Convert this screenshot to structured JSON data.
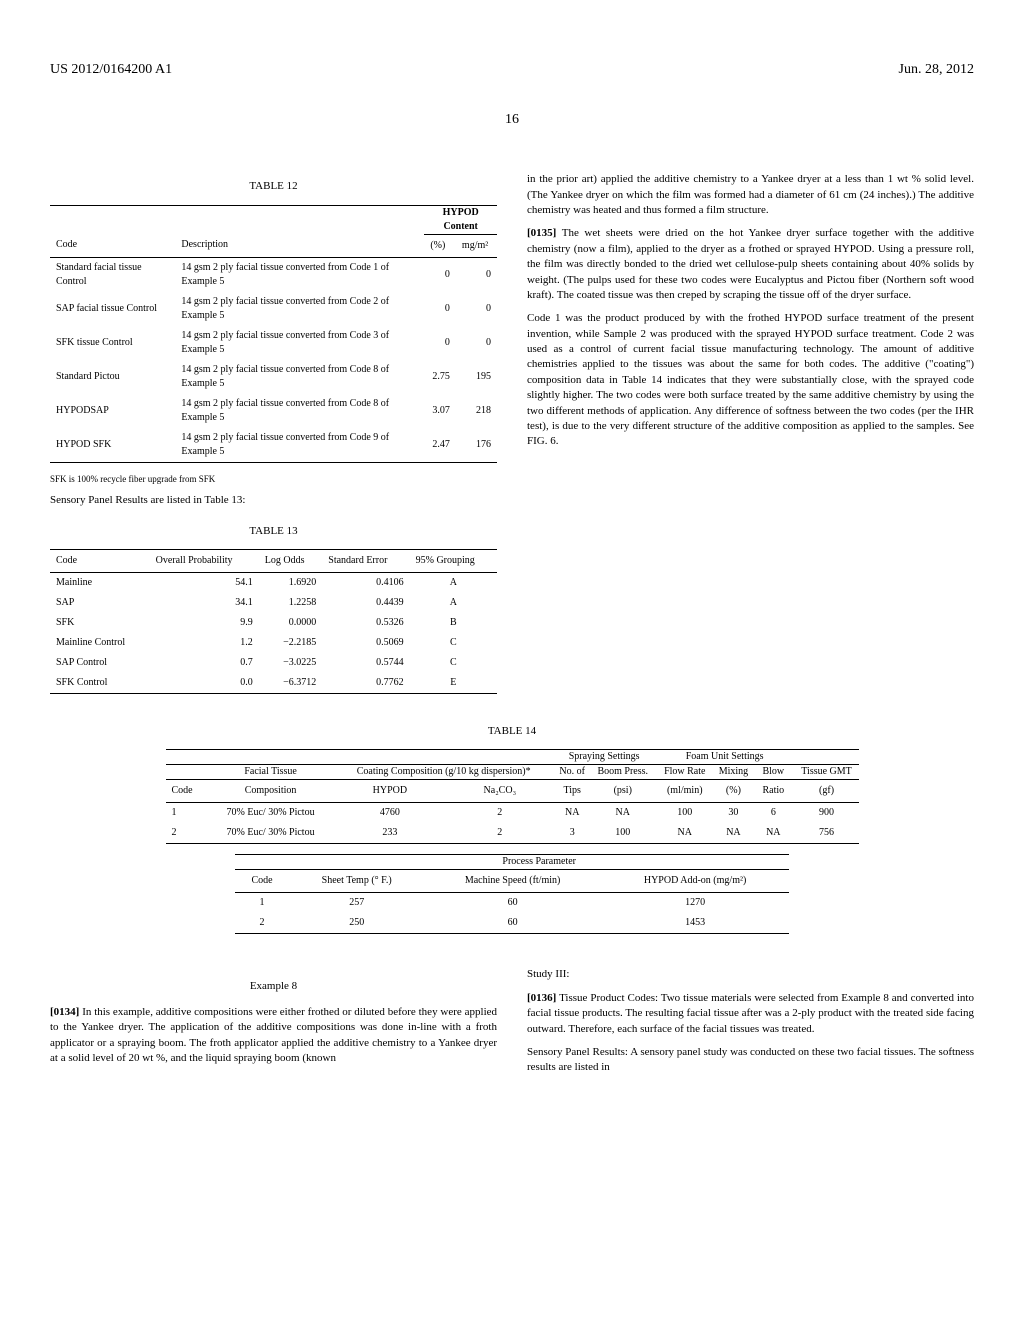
{
  "header": {
    "left": "US 2012/0164200 A1",
    "right": "Jun. 28, 2012"
  },
  "pageNumber": "16",
  "table12": {
    "title": "TABLE 12",
    "groupHeader": "HYPOD Content",
    "cols": [
      "Code",
      "Description",
      "(%)",
      "mg/m²"
    ],
    "rows": [
      [
        "Standard facial tissue Control",
        "14 gsm 2 ply facial tissue converted from Code 1 of Example 5",
        "0",
        "0"
      ],
      [
        "SAP facial tissue Control",
        "14 gsm 2 ply facial tissue converted from Code 2 of Example 5",
        "0",
        "0"
      ],
      [
        "SFK tissue Control",
        "14 gsm 2 ply facial tissue converted from Code 3 of Example 5",
        "0",
        "0"
      ],
      [
        "Standard Pictou",
        "14 gsm 2 ply facial tissue converted from Code 8 of Example 5",
        "2.75",
        "195"
      ],
      [
        "HYPODSAP",
        "14 gsm 2 ply facial tissue converted from Code 8 of Example 5",
        "3.07",
        "218"
      ],
      [
        "HYPOD SFK",
        "14 gsm 2 ply facial tissue converted from Code 9 of Example 5",
        "2.47",
        "176"
      ]
    ],
    "footnote": "SFK is 100% recycle fiber upgrade from SFK"
  },
  "sensoryIntro": "Sensory Panel Results are listed in Table 13:",
  "table13": {
    "title": "TABLE 13",
    "cols": [
      "Code",
      "Overall Probability",
      "Log Odds",
      "Standard Error",
      "95% Grouping"
    ],
    "rows": [
      [
        "Mainline",
        "54.1",
        "1.6920",
        "0.4106",
        "A"
      ],
      [
        "SAP",
        "34.1",
        "1.2258",
        "0.4439",
        "A"
      ],
      [
        "SFK",
        "9.9",
        "0.0000",
        "0.5326",
        "B"
      ],
      [
        "Mainline Control",
        "1.2",
        "−2.2185",
        "0.5069",
        "C"
      ],
      [
        "SAP Control",
        "0.7",
        "−3.0225",
        "0.5744",
        "C"
      ],
      [
        "SFK Control",
        "0.0",
        "−6.3712",
        "0.7762",
        "E"
      ]
    ]
  },
  "rightCol": {
    "p0": "in the prior art) applied the additive chemistry to a Yankee dryer at a less than 1 wt % solid level. (The Yankee dryer on which the film was formed had a diameter of 61 cm (24 inches).) The additive chemistry was heated and thus formed a film structure.",
    "p135num": "[0135]",
    "p135": "The wet sheets were dried on the hot Yankee dryer surface together with the additive chemistry (now a film), applied to the dryer as a frothed or sprayed HYPOD. Using a pressure roll, the film was directly bonded to the dried wet cellulose-pulp sheets containing about 40% solids by weight. (The pulps used for these two codes were Eucalyptus and Pictou fiber (Northern soft wood kraft). The coated tissue was then creped by scraping the tissue off of the dryer surface.",
    "p135b": "Code 1 was the product produced by with the frothed HYPOD surface treatment of the present invention, while Sample 2 was produced with the sprayed HYPOD surface treatment. Code 2 was used as a control of current facial tissue manufacturing technology. The amount of additive chemistries applied to the tissues was about the same for both codes. The additive (\"coating\") composition data in Table 14 indicates that they were substantially close, with the sprayed code slightly higher. The two codes were both surface treated by the same additive chemistry by using the two different methods of application. Any difference of softness between the two codes (per the IHR test), is due to the very different structure of the additive composition as applied to the samples. See FIG. 6."
  },
  "table14": {
    "title": "TABLE 14",
    "groupCols": [
      "",
      "",
      "",
      "Spraying Settings",
      "Foam Unit Settings",
      ""
    ],
    "headersTop": [
      "",
      "Facial Tissue",
      "Coating Composition (g/10 kg dispersion)*",
      "",
      "No. of",
      "Boom Press.",
      "Flow Rate",
      "Mixing",
      "Blow",
      "Tissue GMT"
    ],
    "headersBot": [
      "Code",
      "Composition",
      "HYPOD",
      "Na₂CO₃",
      "Tips",
      "(psi)",
      "(ml/min)",
      "(%)",
      "Ratio",
      "(gf)"
    ],
    "rows": [
      [
        "1",
        "70% Euc/ 30% Pictou",
        "4760",
        "2",
        "NA",
        "NA",
        "100",
        "30",
        "6",
        "900"
      ],
      [
        "2",
        "70% Euc/ 30% Pictou",
        "233",
        "2",
        "3",
        "100",
        "NA",
        "NA",
        "NA",
        "756"
      ]
    ],
    "procTitle": "Process Parameter",
    "procCols": [
      "Code",
      "Sheet Temp (° F.)",
      "Machine Speed (ft/min)",
      "HYPOD Add-on (mg/m²)"
    ],
    "procRows": [
      [
        "1",
        "257",
        "60",
        "1270"
      ],
      [
        "2",
        "250",
        "60",
        "1453"
      ]
    ]
  },
  "bottomLeft": {
    "exTitle": "Example 8",
    "p134num": "[0134]",
    "p134": "In this example, additive compositions were either frothed or diluted before they were applied to the Yankee dryer. The application of the additive compositions was done in-line with a froth applicator or a spraying boom. The froth applicator applied the additive chemistry to a Yankee dryer at a solid level of 20 wt %, and the liquid spraying boom (known"
  },
  "bottomRight": {
    "studyTitle": "Study III:",
    "p136num": "[0136]",
    "p136": "Tissue Product Codes: Two tissue materials were selected from Example 8 and converted into facial tissue products. The resulting facial tissue after was a 2-ply product with the treated side facing outward. Therefore, each surface of the facial tissues was treated.",
    "p136b": "Sensory Panel Results: A sensory panel study was conducted on these two facial tissues. The softness results are listed in"
  }
}
